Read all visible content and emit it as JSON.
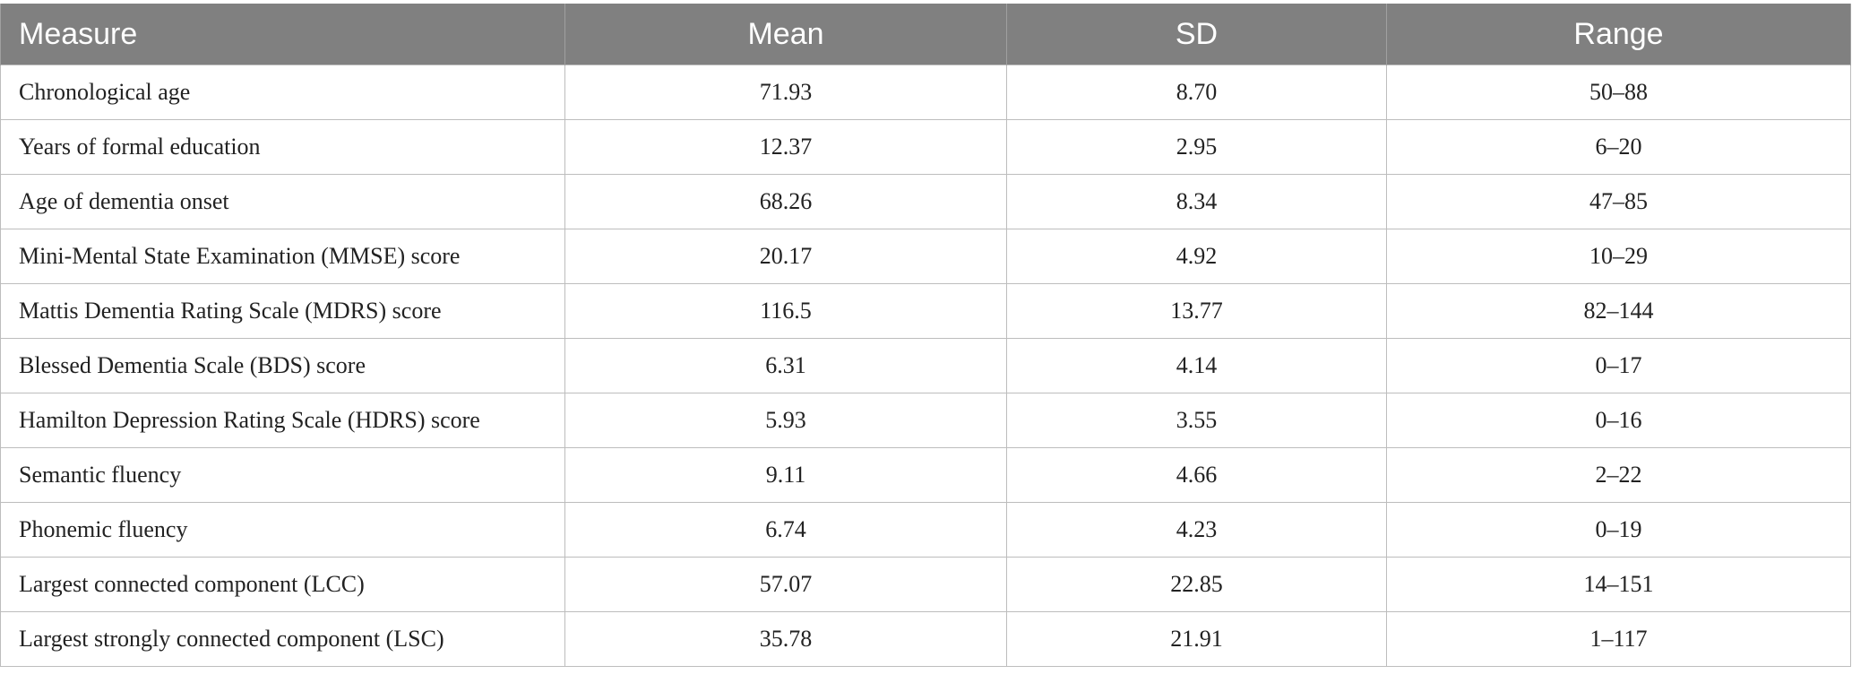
{
  "table": {
    "headers": {
      "measure": "Measure",
      "mean": "Mean",
      "sd": "SD",
      "range": "Range"
    },
    "rows": [
      {
        "measure": "Chronological age",
        "mean": "71.93",
        "sd": "8.70",
        "range": "50–88"
      },
      {
        "measure": "Years of formal education",
        "mean": "12.37",
        "sd": "2.95",
        "range": "6–20"
      },
      {
        "measure": "Age of dementia onset",
        "mean": "68.26",
        "sd": "8.34",
        "range": "47–85"
      },
      {
        "measure": "Mini-Mental State Examination (MMSE) score",
        "mean": "20.17",
        "sd": "4.92",
        "range": "10–29"
      },
      {
        "measure": "Mattis Dementia Rating Scale (MDRS) score",
        "mean": "116.5",
        "sd": "13.77",
        "range": "82–144"
      },
      {
        "measure": "Blessed Dementia Scale (BDS) score",
        "mean": "6.31",
        "sd": "4.14",
        "range": "0–17"
      },
      {
        "measure": "Hamilton Depression Rating Scale (HDRS) score",
        "mean": "5.93",
        "sd": "3.55",
        "range": "0–16"
      },
      {
        "measure": "Semantic fluency",
        "mean": "9.11",
        "sd": "4.66",
        "range": "2–22"
      },
      {
        "measure": "Phonemic fluency",
        "mean": "6.74",
        "sd": "4.23",
        "range": "0–19"
      },
      {
        "measure": "Largest connected component (LCC)",
        "mean": "57.07",
        "sd": "22.85",
        "range": "14–151"
      },
      {
        "measure": "Largest strongly connected component (LSC)",
        "mean": "35.78",
        "sd": "21.91",
        "range": "1–117"
      }
    ]
  },
  "colors": {
    "header_bg": "#808080",
    "header_text": "#ffffff",
    "border": "#bdbdbd",
    "cell_text": "#222222"
  }
}
